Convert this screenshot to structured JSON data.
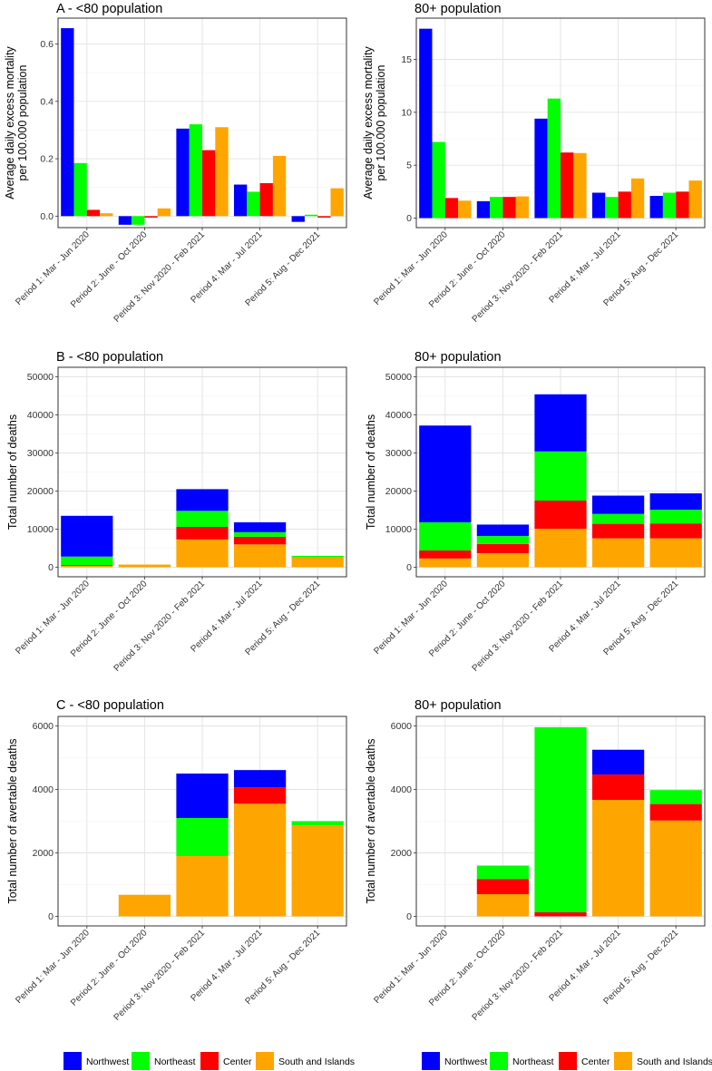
{
  "legend": {
    "items": [
      {
        "name": "Northwest",
        "color": "#0000ff"
      },
      {
        "name": "Northeast",
        "color": "#00ff00"
      },
      {
        "name": "Center",
        "color": "#ff0000"
      },
      {
        "name": "South and Islands",
        "color": "#ffa500"
      }
    ]
  },
  "chart_data": [
    {
      "id": "A_under80",
      "type": "bar",
      "mode": "grouped",
      "title": "A - <80 population",
      "ylabel": "Average daily excess mortality\nper 100.000 population",
      "ylim": [
        -0.04,
        0.69
      ],
      "yticks": [
        0.0,
        0.2,
        0.4,
        0.6
      ],
      "categories": [
        "Period 1: Mar - Jun 2020",
        "Period 2: June - Oct 2020",
        "Period 3: Nov 2020 - Feb 2021",
        "Period 4: Mar - Jul 2021",
        "Period 5: Aug - Dec 2021"
      ],
      "series": [
        {
          "name": "Northwest",
          "values": [
            0.655,
            -0.03,
            0.305,
            0.11,
            -0.02
          ]
        },
        {
          "name": "Northeast",
          "values": [
            0.185,
            -0.03,
            0.32,
            0.085,
            0.005
          ]
        },
        {
          "name": "Center",
          "values": [
            0.022,
            -0.005,
            0.23,
            0.115,
            -0.005
          ]
        },
        {
          "name": "South and Islands",
          "values": [
            0.01,
            0.027,
            0.31,
            0.21,
            0.097
          ]
        }
      ]
    },
    {
      "id": "A_80plus",
      "type": "bar",
      "mode": "grouped",
      "title": "80+ population",
      "ylabel": "Average daily excess mortality\nper 100.000 population",
      "ylim": [
        -0.9,
        18.9
      ],
      "yticks": [
        0,
        5,
        10,
        15
      ],
      "categories": [
        "Period 1: Mar - Jun 2020",
        "Period 2: June - Oct 2020",
        "Period 3: Nov 2020 - Feb 2021",
        "Period 4: Mar - Jul 2021",
        "Period 5: Aug - Dec 2021"
      ],
      "series": [
        {
          "name": "Northwest",
          "values": [
            17.9,
            1.6,
            9.4,
            2.4,
            2.1
          ]
        },
        {
          "name": "Northeast",
          "values": [
            7.2,
            2.0,
            11.3,
            2.0,
            2.4
          ]
        },
        {
          "name": "Center",
          "values": [
            1.9,
            2.0,
            6.2,
            2.5,
            2.5
          ]
        },
        {
          "name": "South and Islands",
          "values": [
            1.65,
            2.05,
            6.15,
            3.75,
            3.55
          ]
        }
      ]
    },
    {
      "id": "B_under80",
      "type": "bar",
      "mode": "stacked",
      "title": "B - <80 population",
      "ylabel": "Total number of deaths",
      "ylim": [
        -2500,
        52500
      ],
      "yticks": [
        0,
        10000,
        20000,
        30000,
        40000,
        50000
      ],
      "categories": [
        "Period 1: Mar - Jun 2020",
        "Period 2: June - Oct 2020",
        "Period 3: Nov 2020 - Feb 2021",
        "Period 4: Mar - Jul 2021",
        "Period 5: Aug - Dec 2021"
      ],
      "series": [
        {
          "name": "South and Islands",
          "values": [
            400,
            700,
            7300,
            6000,
            2600
          ]
        },
        {
          "name": "Center",
          "values": [
            200,
            0,
            3300,
            2000,
            0
          ]
        },
        {
          "name": "Northeast",
          "values": [
            2200,
            0,
            4200,
            1200,
            400
          ]
        },
        {
          "name": "Northwest",
          "values": [
            10700,
            0,
            5700,
            2600,
            0
          ]
        }
      ]
    },
    {
      "id": "B_80plus",
      "type": "bar",
      "mode": "stacked",
      "title": "80+ population",
      "ylabel": "Total number of deaths",
      "ylim": [
        -2500,
        52500
      ],
      "yticks": [
        0,
        10000,
        20000,
        30000,
        40000,
        50000
      ],
      "categories": [
        "Period 1: Mar - Jun 2020",
        "Period 2: June - Oct 2020",
        "Period 3: Nov 2020 - Feb 2021",
        "Period 4: Mar - Jul 2021",
        "Period 5: Aug - Dec 2021"
      ],
      "series": [
        {
          "name": "South and Islands",
          "values": [
            2300,
            3700,
            10100,
            7600,
            7600
          ]
        },
        {
          "name": "Center",
          "values": [
            2100,
            2400,
            7400,
            3800,
            3900
          ]
        },
        {
          "name": "Northeast",
          "values": [
            7400,
            2100,
            12900,
            2600,
            3600
          ]
        },
        {
          "name": "Northwest",
          "values": [
            25400,
            3000,
            15000,
            4800,
            4300
          ]
        }
      ]
    },
    {
      "id": "C_under80",
      "type": "bar",
      "mode": "stacked",
      "title": "C - <80 population",
      "ylabel": "Total number of avertable deaths",
      "ylim": [
        -300,
        6300
      ],
      "yticks": [
        0,
        2000,
        4000,
        6000
      ],
      "categories": [
        "Period 1: Mar - Jun 2020",
        "Period 2: June - Oct 2020",
        "Period 3: Nov 2020 - Feb 2021",
        "Period 4: Mar - Jul 2021",
        "Period 5: Aug - Dec 2021"
      ],
      "series": [
        {
          "name": "South and Islands",
          "values": [
            0,
            680,
            1900,
            3550,
            2870
          ]
        },
        {
          "name": "Center",
          "values": [
            0,
            0,
            0,
            520,
            0
          ]
        },
        {
          "name": "Northeast",
          "values": [
            0,
            0,
            1200,
            0,
            130
          ]
        },
        {
          "name": "Northwest",
          "values": [
            0,
            0,
            1400,
            540,
            0
          ]
        }
      ]
    },
    {
      "id": "C_80plus",
      "type": "bar",
      "mode": "stacked",
      "title": "80+ population",
      "ylabel": "Total number of avertable deaths",
      "ylim": [
        -300,
        6300
      ],
      "yticks": [
        0,
        2000,
        4000,
        6000
      ],
      "categories": [
        "Period 1: Mar - Jun 2020",
        "Period 2: June - Oct 2020",
        "Period 3: Nov 2020 - Feb 2021",
        "Period 4: Mar - Jul 2021",
        "Period 5: Aug - Dec 2021"
      ],
      "series": [
        {
          "name": "South and Islands",
          "values": [
            0,
            700,
            0,
            3670,
            3020
          ]
        },
        {
          "name": "Center",
          "values": [
            0,
            480,
            130,
            800,
            520
          ]
        },
        {
          "name": "Northeast",
          "values": [
            0,
            420,
            5830,
            0,
            440
          ]
        },
        {
          "name": "Northwest",
          "values": [
            0,
            0,
            0,
            780,
            0
          ]
        }
      ]
    }
  ]
}
